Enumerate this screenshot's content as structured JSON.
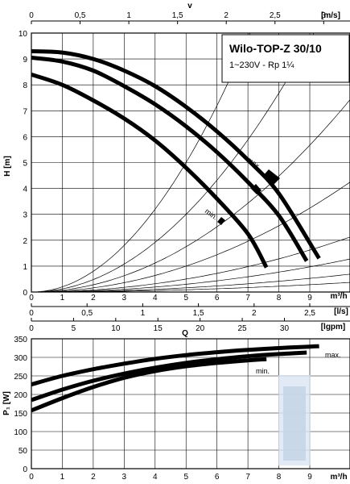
{
  "chart_data": [
    {
      "type": "line",
      "title": "Wilo-TOP-Z 30/10",
      "subtitle": "1~230V - Rp 1¼",
      "xlabel": "Q",
      "ylabel": "H [m]",
      "top_axis": {
        "label": "v",
        "unit": "[m/s]",
        "ticks": [
          "0",
          "0,5",
          "1",
          "1,5",
          "2",
          "2,5",
          "3"
        ],
        "values": [
          0,
          0.5,
          1,
          1.5,
          2,
          2.5,
          3
        ]
      },
      "x_ticks": [
        "0",
        "1",
        "2",
        "3",
        "4",
        "5",
        "6",
        "7",
        "8",
        "9"
      ],
      "x_unit": "m³/h",
      "xlim": [
        0,
        10.3
      ],
      "y_ticks": [
        "0",
        "1",
        "2",
        "3",
        "4",
        "5",
        "6",
        "7",
        "8",
        "9",
        "10"
      ],
      "ylim": [
        0,
        10
      ],
      "grid": true,
      "annotations": [
        "max.",
        "min."
      ],
      "series": [
        {
          "x": [
            0,
            1,
            2,
            3,
            4,
            5,
            6,
            7,
            8,
            9.3
          ],
          "values": [
            9.3,
            9.25,
            9.0,
            8.55,
            7.95,
            7.15,
            6.2,
            5.1,
            3.8,
            1.3
          ]
        },
        {
          "x": [
            0,
            1,
            2,
            3,
            4,
            5,
            6,
            7,
            8,
            8.9
          ],
          "values": [
            9.05,
            8.9,
            8.55,
            7.95,
            7.25,
            6.4,
            5.4,
            4.25,
            2.95,
            1.2
          ]
        },
        {
          "x": [
            0,
            1,
            2,
            3,
            4,
            5,
            6,
            7,
            7.6
          ],
          "values": [
            8.4,
            8.0,
            7.4,
            6.7,
            5.85,
            4.8,
            3.6,
            2.25,
            0.95
          ]
        }
      ],
      "system_curves_k": [
        0.2,
        0.12,
        0.07,
        0.04,
        0.02,
        0.012,
        0.0065,
        0.0035
      ]
    },
    {
      "type": "axes",
      "axes": [
        {
          "unit": "[l/s]",
          "ticks": [
            "0",
            "0,5",
            "1",
            "1,5",
            "2",
            "2,5"
          ],
          "values": [
            0,
            0.5,
            1,
            1.5,
            2,
            2.5
          ]
        },
        {
          "unit": "[lgpm]",
          "ticks": [
            "0",
            "5",
            "10",
            "15",
            "20",
            "25",
            "30"
          ],
          "values": [
            0,
            5,
            10,
            15,
            20,
            25,
            30
          ]
        }
      ]
    },
    {
      "type": "line",
      "ylabel": "P₁ [W]",
      "x_ticks": [
        "0",
        "1",
        "2",
        "3",
        "4",
        "5",
        "6",
        "7",
        "8",
        "9"
      ],
      "x_unit": "m³/h",
      "xlim": [
        0,
        10.3
      ],
      "y_ticks": [
        "0",
        "50",
        "100",
        "150",
        "200",
        "250",
        "300",
        "350"
      ],
      "ylim": [
        0,
        350
      ],
      "grid": true,
      "annotations": [
        "max.",
        "min."
      ],
      "series": [
        {
          "x": [
            0,
            1,
            2,
            3,
            4,
            5,
            6,
            7,
            8,
            9,
            9.3
          ],
          "values": [
            227,
            250,
            268,
            283,
            296,
            306,
            314,
            320,
            325,
            329,
            330
          ]
        },
        {
          "x": [
            0,
            1,
            2,
            3,
            4,
            5,
            6,
            7,
            8,
            8.9
          ],
          "values": [
            185,
            213,
            237,
            256,
            272,
            285,
            295,
            303,
            309,
            313
          ]
        },
        {
          "x": [
            0,
            1,
            2,
            3,
            4,
            5,
            6,
            7,
            7.6
          ],
          "values": [
            157,
            190,
            220,
            245,
            263,
            276,
            285,
            292,
            295
          ]
        }
      ]
    }
  ]
}
